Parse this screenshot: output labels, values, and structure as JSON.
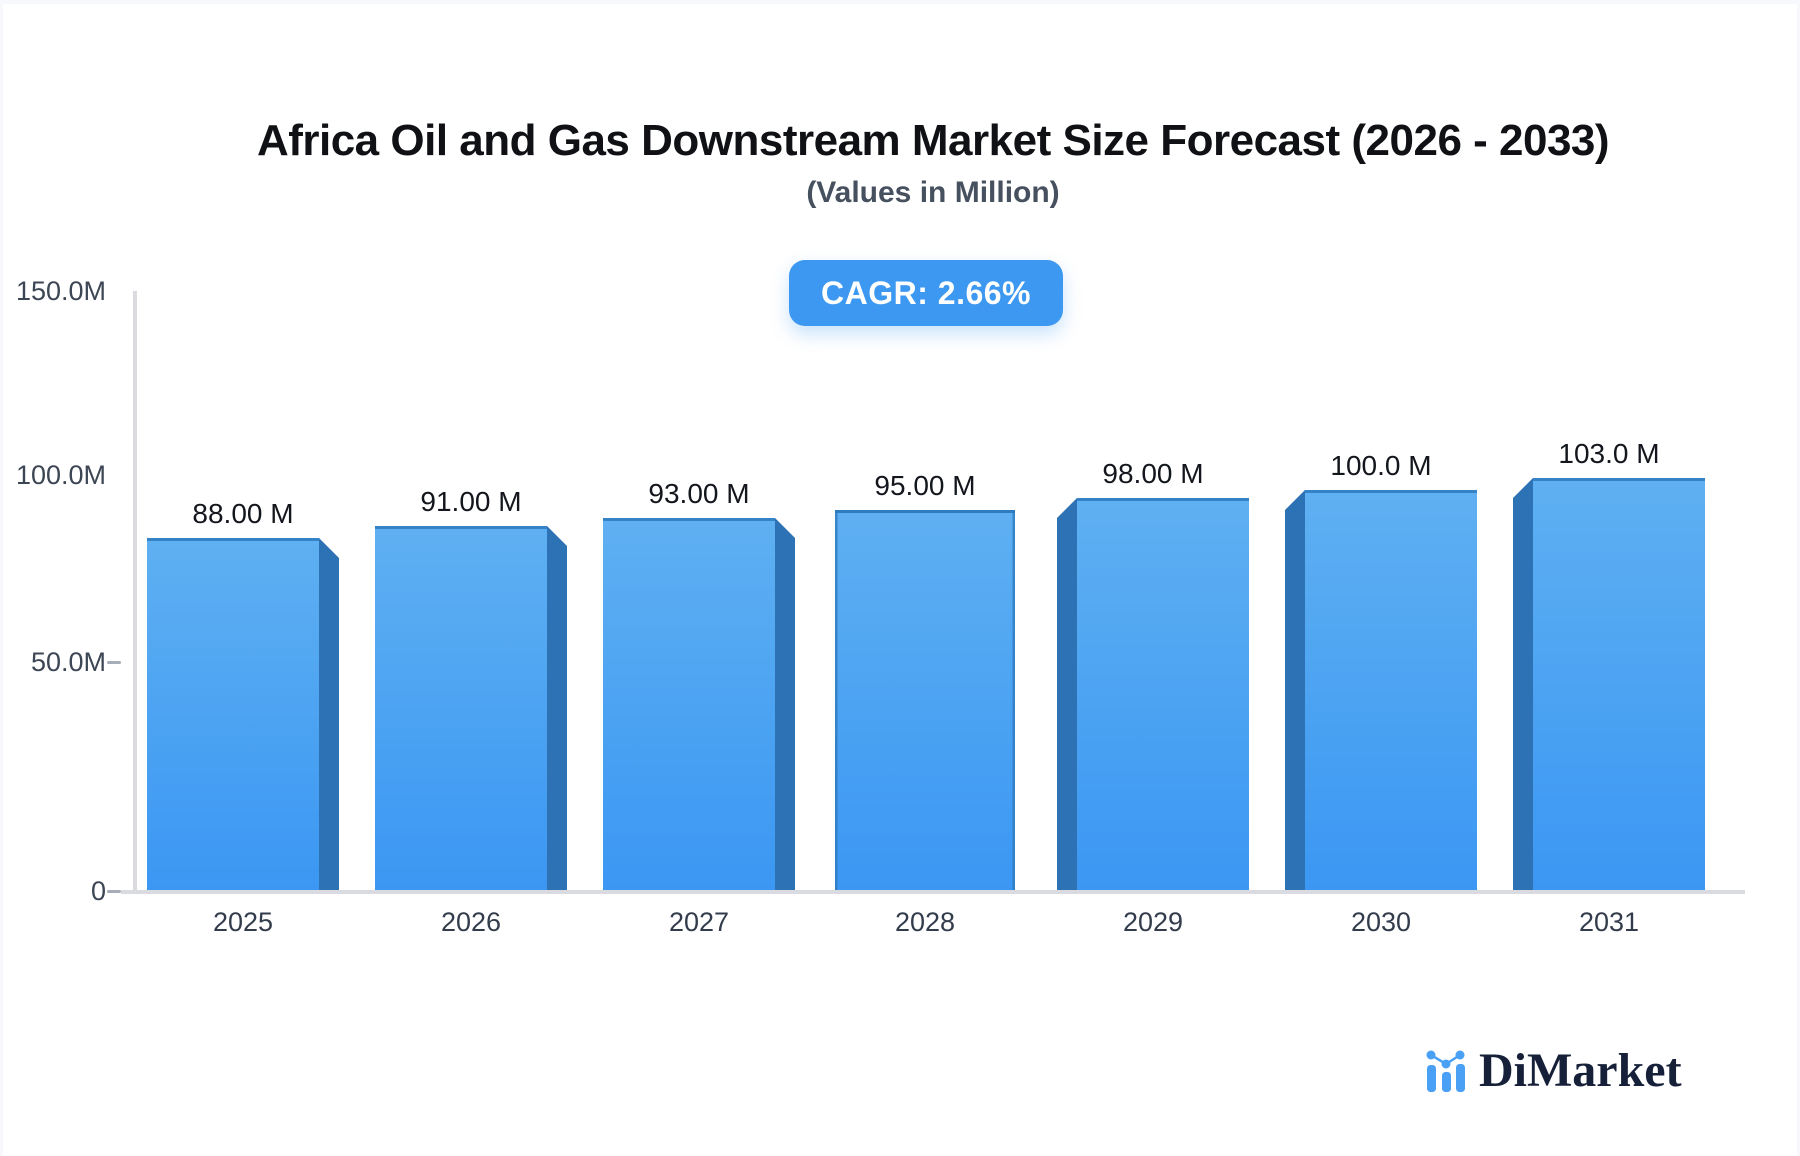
{
  "title": "Africa Oil and Gas Downstream Market Size Forecast (2026 - 2033)",
  "subtitle": "(Values in Million)",
  "cagr": {
    "label": "CAGR: 2.66%",
    "value": "2.66%"
  },
  "brand": {
    "name": "DiMarket"
  },
  "colors": {
    "bar_face_top": "#5fb0f2",
    "bar_face_bottom": "#3b97f3",
    "bar_side": "#2c72b4",
    "bar_edge": "#2e7bbe",
    "badge_bg": "#3c98f0",
    "badge_text": "#ffffff",
    "axis_line": "#d9dbe0"
  },
  "chart_data": {
    "type": "bar",
    "categories": [
      "2025",
      "2026",
      "2027",
      "2028",
      "2029",
      "2030",
      "2031"
    ],
    "values": [
      88,
      91,
      93,
      95,
      98,
      100,
      103
    ],
    "unit": "Million",
    "value_labels": [
      "88.00 M",
      "91.00 M",
      "93.00 M",
      "95.00 M",
      "98.00 M",
      "100.0 M",
      "103.0 M"
    ],
    "title": "Africa Oil and Gas Downstream Market Size Forecast (2026 - 2033)",
    "xlabel": "",
    "ylabel": "",
    "ylim": [
      0,
      150
    ],
    "y_ticks_top_to_bottom": [
      "150.0M",
      "100.0M",
      "50.0M",
      "0"
    ],
    "grid": false,
    "legend": false
  }
}
